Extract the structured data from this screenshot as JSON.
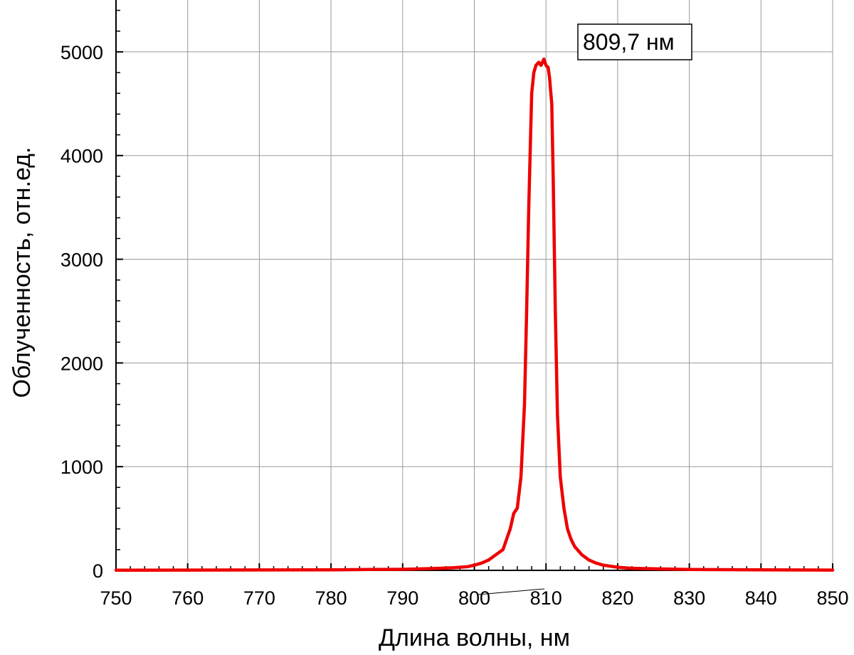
{
  "chart_data": {
    "type": "line",
    "title": "",
    "xlabel": "Длина волны, нм",
    "ylabel": "Облученность, отн.ед.",
    "xlim": [
      750,
      850
    ],
    "ylim": [
      0,
      5500
    ],
    "grid": true,
    "x_ticks": [
      "750",
      "760",
      "770",
      "780",
      "790",
      "800",
      "810",
      "820",
      "830",
      "840",
      "850"
    ],
    "y_ticks": [
      "0",
      "1000",
      "2000",
      "3000",
      "4000",
      "5000"
    ],
    "annotation": {
      "text": "809,7 нм",
      "x": 809.7,
      "y": 4930
    },
    "series": [
      {
        "color": "#ee0000",
        "x": [
          750,
          760,
          770,
          780,
          785,
          790,
          793,
          795,
          797,
          799,
          800,
          801,
          802,
          803,
          804,
          804.5,
          805,
          805.5,
          806,
          806.5,
          807,
          807.3,
          807.6,
          808,
          808.3,
          808.6,
          809,
          809.3,
          809.7,
          810.0,
          810.3,
          810.5,
          810.8,
          811,
          811.3,
          811.6,
          812,
          812.5,
          813,
          813.5,
          814,
          815,
          816,
          817,
          818,
          820,
          822,
          825,
          830,
          840,
          850
        ],
        "y": [
          2,
          3,
          4,
          5,
          8,
          10,
          15,
          20,
          25,
          35,
          50,
          70,
          100,
          150,
          200,
          300,
          400,
          550,
          600,
          900,
          1600,
          2500,
          3500,
          4600,
          4800,
          4870,
          4900,
          4870,
          4930,
          4870,
          4850,
          4750,
          4500,
          3800,
          2500,
          1500,
          900,
          600,
          400,
          300,
          230,
          150,
          100,
          70,
          50,
          30,
          20,
          15,
          8,
          5,
          3
        ]
      }
    ]
  }
}
